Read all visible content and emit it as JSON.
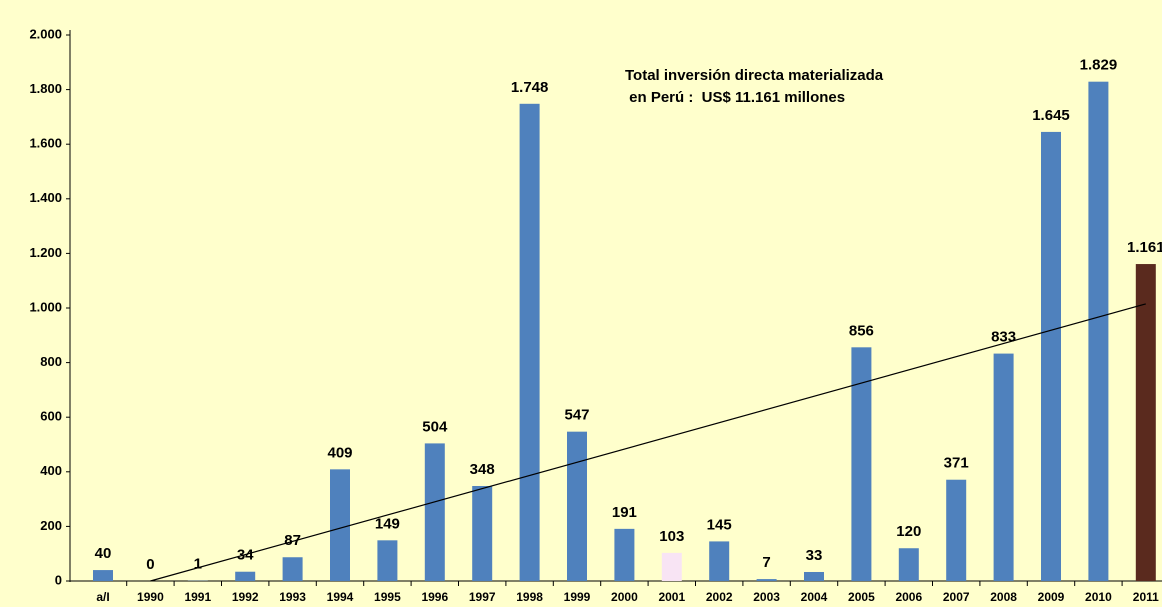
{
  "chart_data": {
    "type": "bar",
    "categories": [
      "a/I",
      "1990",
      "1991",
      "1992",
      "1993",
      "1994",
      "1995",
      "1996",
      "1997",
      "1998",
      "1999",
      "2000",
      "2001",
      "2002",
      "2003",
      "2004",
      "2005",
      "2006",
      "2007",
      "2008",
      "2009",
      "2010",
      "2011"
    ],
    "values": [
      40,
      0,
      1,
      34,
      87,
      409,
      149,
      504,
      348,
      1748,
      547,
      191,
      103,
      145,
      7,
      33,
      856,
      120,
      371,
      833,
      1645,
      1829,
      1161
    ],
    "value_labels": [
      "40",
      "0",
      "1",
      "34",
      "87",
      "409",
      "149",
      "504",
      "348",
      "1.748",
      "547",
      "191",
      "103",
      "145",
      "7",
      "33",
      "856",
      "120",
      "371",
      "833",
      "1.645",
      "1.829",
      "1.161"
    ],
    "color": "#4f81bd",
    "colors": [
      "#4f81bd",
      "#4f81bd",
      "#4f81bd",
      "#4f81bd",
      "#4f81bd",
      "#4f81bd",
      "#4f81bd",
      "#4f81bd",
      "#4f81bd",
      "#4f81bd",
      "#4f81bd",
      "#4f81bd",
      "#f8e4f4",
      "#4f81bd",
      "#4f81bd",
      "#4f81bd",
      "#4f81bd",
      "#4f81bd",
      "#4f81bd",
      "#4f81bd",
      "#4f81bd",
      "#4f81bd",
      "#5a2a1e"
    ],
    "ylim": [
      0,
      2000
    ],
    "yticks": [
      0,
      {
        "value": 200,
        "label": "200"
      },
      400,
      600,
      800,
      {
        "value": 1000,
        "label": "1.000"
      },
      {
        "value": 1200,
        "label": "1.200"
      },
      {
        "value": 1400,
        "label": "1.400"
      },
      {
        "value": 1600,
        "label": "1.600"
      },
      {
        "value": 1800,
        "label": "1.800"
      },
      {
        "value": 2000,
        "label": "2.000"
      }
    ],
    "annotation": [
      "Total inversión directa materializada",
      " en Perú :  US$ 11.161 millones"
    ],
    "trend": {
      "start": 0,
      "end": 1015
    }
  }
}
